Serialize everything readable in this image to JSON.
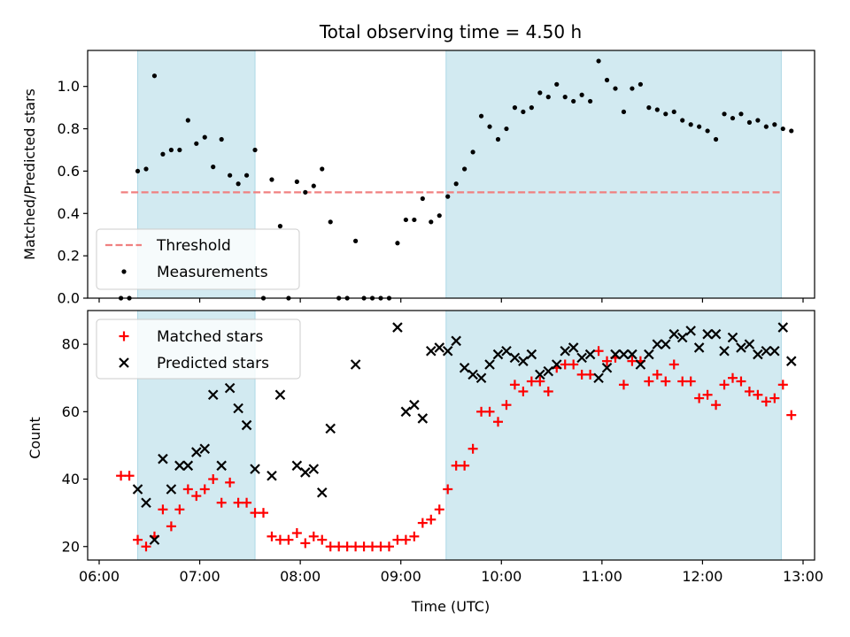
{
  "chart_data": [
    {
      "type": "scatter",
      "title": "Total observing time = 4.50 h",
      "xlabel": "",
      "ylabel": "Matched/Predicted stars",
      "xlim": [
        "06:00",
        "13:00"
      ],
      "ylim": [
        0,
        1.17
      ],
      "yticks": [
        "0.0",
        "0.2",
        "0.4",
        "0.6",
        "0.8",
        "1.0"
      ],
      "shaded_spans": [
        [
          "06:23",
          "07:33"
        ],
        [
          "09:27",
          "12:47"
        ]
      ],
      "shade_color": "#add8e6",
      "legend_position": "lower-left",
      "threshold": {
        "name": "Threshold",
        "value": 0.5,
        "x_range": [
          "06:13",
          "12:47"
        ],
        "color": "#f08080"
      },
      "series": [
        {
          "name": "Measurements",
          "color": "#000000",
          "points": [
            [
              "06:13",
              0.0
            ],
            [
              "06:18",
              0.0
            ],
            [
              "06:23",
              0.6
            ],
            [
              "06:28",
              0.61
            ],
            [
              "06:33",
              1.05
            ],
            [
              "06:38",
              0.68
            ],
            [
              "06:43",
              0.7
            ],
            [
              "06:48",
              0.7
            ],
            [
              "06:53",
              0.84
            ],
            [
              "06:58",
              0.73
            ],
            [
              "07:03",
              0.76
            ],
            [
              "07:08",
              0.62
            ],
            [
              "07:13",
              0.75
            ],
            [
              "07:18",
              0.58
            ],
            [
              "07:23",
              0.54
            ],
            [
              "07:28",
              0.58
            ],
            [
              "07:33",
              0.7
            ],
            [
              "07:38",
              0.0
            ],
            [
              "07:43",
              0.56
            ],
            [
              "07:48",
              0.34
            ],
            [
              "07:53",
              0.0
            ],
            [
              "07:58",
              0.55
            ],
            [
              "08:03",
              0.5
            ],
            [
              "08:08",
              0.53
            ],
            [
              "08:13",
              0.61
            ],
            [
              "08:18",
              0.36
            ],
            [
              "08:23",
              0.0
            ],
            [
              "08:28",
              0.0
            ],
            [
              "08:33",
              0.27
            ],
            [
              "08:38",
              0.0
            ],
            [
              "08:43",
              0.0
            ],
            [
              "08:48",
              0.0
            ],
            [
              "08:53",
              0.0
            ],
            [
              "08:58",
              0.26
            ],
            [
              "09:03",
              0.37
            ],
            [
              "09:08",
              0.37
            ],
            [
              "09:13",
              0.47
            ],
            [
              "09:18",
              0.36
            ],
            [
              "09:23",
              0.39
            ],
            [
              "09:28",
              0.48
            ],
            [
              "09:33",
              0.54
            ],
            [
              "09:38",
              0.61
            ],
            [
              "09:43",
              0.69
            ],
            [
              "09:48",
              0.86
            ],
            [
              "09:53",
              0.81
            ],
            [
              "09:58",
              0.75
            ],
            [
              "10:03",
              0.8
            ],
            [
              "10:08",
              0.9
            ],
            [
              "10:13",
              0.88
            ],
            [
              "10:18",
              0.9
            ],
            [
              "10:23",
              0.97
            ],
            [
              "10:28",
              0.95
            ],
            [
              "10:33",
              1.01
            ],
            [
              "10:38",
              0.95
            ],
            [
              "10:43",
              0.93
            ],
            [
              "10:48",
              0.96
            ],
            [
              "10:53",
              0.93
            ],
            [
              "10:58",
              1.12
            ],
            [
              "11:03",
              1.03
            ],
            [
              "11:08",
              0.99
            ],
            [
              "11:13",
              0.88
            ],
            [
              "11:18",
              0.99
            ],
            [
              "11:23",
              1.01
            ],
            [
              "11:28",
              0.9
            ],
            [
              "11:33",
              0.89
            ],
            [
              "11:38",
              0.87
            ],
            [
              "11:43",
              0.88
            ],
            [
              "11:48",
              0.84
            ],
            [
              "11:53",
              0.82
            ],
            [
              "11:58",
              0.81
            ],
            [
              "12:03",
              0.79
            ],
            [
              "12:08",
              0.75
            ],
            [
              "12:13",
              0.87
            ],
            [
              "12:18",
              0.85
            ],
            [
              "12:23",
              0.87
            ],
            [
              "12:28",
              0.83
            ],
            [
              "12:33",
              0.84
            ],
            [
              "12:38",
              0.81
            ],
            [
              "12:43",
              0.82
            ],
            [
              "12:48",
              0.8
            ],
            [
              "12:53",
              0.79
            ]
          ]
        }
      ]
    },
    {
      "type": "scatter",
      "title": "",
      "xlabel": "Time (UTC)",
      "ylabel": "Count",
      "xlim": [
        "06:00",
        "13:00"
      ],
      "ylim": [
        16,
        90
      ],
      "yticks": [
        "20",
        "40",
        "60",
        "80"
      ],
      "xticks": [
        "06:00",
        "07:00",
        "08:00",
        "09:00",
        "10:00",
        "11:00",
        "12:00",
        "13:00"
      ],
      "shaded_spans": [
        [
          "06:23",
          "07:33"
        ],
        [
          "09:27",
          "12:47"
        ]
      ],
      "shade_color": "#add8e6",
      "legend_position": "upper-left",
      "series": [
        {
          "name": "Matched stars",
          "color": "#ff0000",
          "marker": "plus",
          "points": [
            [
              "06:13",
              41
            ],
            [
              "06:18",
              41
            ],
            [
              "06:23",
              22
            ],
            [
              "06:28",
              20
            ],
            [
              "06:33",
              23
            ],
            [
              "06:38",
              31
            ],
            [
              "06:43",
              26
            ],
            [
              "06:48",
              31
            ],
            [
              "06:53",
              37
            ],
            [
              "06:58",
              35
            ],
            [
              "07:03",
              37
            ],
            [
              "07:08",
              40
            ],
            [
              "07:13",
              33
            ],
            [
              "07:18",
              39
            ],
            [
              "07:23",
              33
            ],
            [
              "07:28",
              33
            ],
            [
              "07:33",
              30
            ],
            [
              "07:38",
              30
            ],
            [
              "07:43",
              23
            ],
            [
              "07:48",
              22
            ],
            [
              "07:53",
              22
            ],
            [
              "07:58",
              24
            ],
            [
              "08:03",
              21
            ],
            [
              "08:08",
              23
            ],
            [
              "08:13",
              22
            ],
            [
              "08:18",
              20
            ],
            [
              "08:23",
              20
            ],
            [
              "08:28",
              20
            ],
            [
              "08:33",
              20
            ],
            [
              "08:38",
              20
            ],
            [
              "08:43",
              20
            ],
            [
              "08:48",
              20
            ],
            [
              "08:53",
              20
            ],
            [
              "08:58",
              22
            ],
            [
              "09:03",
              22
            ],
            [
              "09:08",
              23
            ],
            [
              "09:13",
              27
            ],
            [
              "09:18",
              28
            ],
            [
              "09:23",
              31
            ],
            [
              "09:28",
              37
            ],
            [
              "09:33",
              44
            ],
            [
              "09:38",
              44
            ],
            [
              "09:43",
              49
            ],
            [
              "09:48",
              60
            ],
            [
              "09:53",
              60
            ],
            [
              "09:58",
              57
            ],
            [
              "10:03",
              62
            ],
            [
              "10:08",
              68
            ],
            [
              "10:13",
              66
            ],
            [
              "10:18",
              69
            ],
            [
              "10:23",
              69
            ],
            [
              "10:28",
              66
            ],
            [
              "10:33",
              73
            ],
            [
              "10:38",
              74
            ],
            [
              "10:43",
              74
            ],
            [
              "10:48",
              71
            ],
            [
              "10:53",
              71
            ],
            [
              "10:58",
              78
            ],
            [
              "11:03",
              75
            ],
            [
              "11:08",
              76
            ],
            [
              "11:13",
              68
            ],
            [
              "11:18",
              75
            ],
            [
              "11:23",
              75
            ],
            [
              "11:28",
              69
            ],
            [
              "11:33",
              71
            ],
            [
              "11:38",
              69
            ],
            [
              "11:43",
              74
            ],
            [
              "11:48",
              69
            ],
            [
              "11:53",
              69
            ],
            [
              "11:58",
              64
            ],
            [
              "12:03",
              65
            ],
            [
              "12:08",
              62
            ],
            [
              "12:13",
              68
            ],
            [
              "12:18",
              70
            ],
            [
              "12:23",
              69
            ],
            [
              "12:28",
              66
            ],
            [
              "12:33",
              65
            ],
            [
              "12:38",
              63
            ],
            [
              "12:43",
              64
            ],
            [
              "12:48",
              68
            ],
            [
              "12:53",
              59
            ]
          ]
        },
        {
          "name": "Predicted stars",
          "color": "#000000",
          "marker": "x",
          "points": [
            [
              "06:23",
              37
            ],
            [
              "06:28",
              33
            ],
            [
              "06:33",
              22
            ],
            [
              "06:38",
              46
            ],
            [
              "06:43",
              37
            ],
            [
              "06:48",
              44
            ],
            [
              "06:53",
              44
            ],
            [
              "06:58",
              48
            ],
            [
              "07:03",
              49
            ],
            [
              "07:08",
              65
            ],
            [
              "07:13",
              44
            ],
            [
              "07:18",
              67
            ],
            [
              "07:23",
              61
            ],
            [
              "07:28",
              56
            ],
            [
              "07:33",
              43
            ],
            [
              "07:43",
              41
            ],
            [
              "07:48",
              65
            ],
            [
              "07:58",
              44
            ],
            [
              "08:03",
              42
            ],
            [
              "08:08",
              43
            ],
            [
              "08:13",
              36
            ],
            [
              "08:18",
              55
            ],
            [
              "08:33",
              74
            ],
            [
              "08:58",
              85
            ],
            [
              "09:03",
              60
            ],
            [
              "09:08",
              62
            ],
            [
              "09:13",
              58
            ],
            [
              "09:18",
              78
            ],
            [
              "09:23",
              79
            ],
            [
              "09:28",
              78
            ],
            [
              "09:33",
              81
            ],
            [
              "09:38",
              73
            ],
            [
              "09:43",
              71
            ],
            [
              "09:48",
              70
            ],
            [
              "09:53",
              74
            ],
            [
              "09:58",
              77
            ],
            [
              "10:03",
              78
            ],
            [
              "10:08",
              76
            ],
            [
              "10:13",
              75
            ],
            [
              "10:18",
              77
            ],
            [
              "10:23",
              71
            ],
            [
              "10:28",
              72
            ],
            [
              "10:33",
              74
            ],
            [
              "10:38",
              78
            ],
            [
              "10:43",
              79
            ],
            [
              "10:48",
              76
            ],
            [
              "10:53",
              77
            ],
            [
              "10:58",
              70
            ],
            [
              "11:03",
              73
            ],
            [
              "11:08",
              77
            ],
            [
              "11:13",
              77
            ],
            [
              "11:18",
              77
            ],
            [
              "11:23",
              74
            ],
            [
              "11:28",
              77
            ],
            [
              "11:33",
              80
            ],
            [
              "11:38",
              80
            ],
            [
              "11:43",
              83
            ],
            [
              "11:48",
              82
            ],
            [
              "11:53",
              84
            ],
            [
              "11:58",
              79
            ],
            [
              "12:03",
              83
            ],
            [
              "12:08",
              83
            ],
            [
              "12:13",
              78
            ],
            [
              "12:18",
              82
            ],
            [
              "12:23",
              79
            ],
            [
              "12:28",
              80
            ],
            [
              "12:33",
              77
            ],
            [
              "12:38",
              78
            ],
            [
              "12:43",
              78
            ],
            [
              "12:48",
              85
            ],
            [
              "12:53",
              75
            ]
          ]
        }
      ]
    }
  ]
}
